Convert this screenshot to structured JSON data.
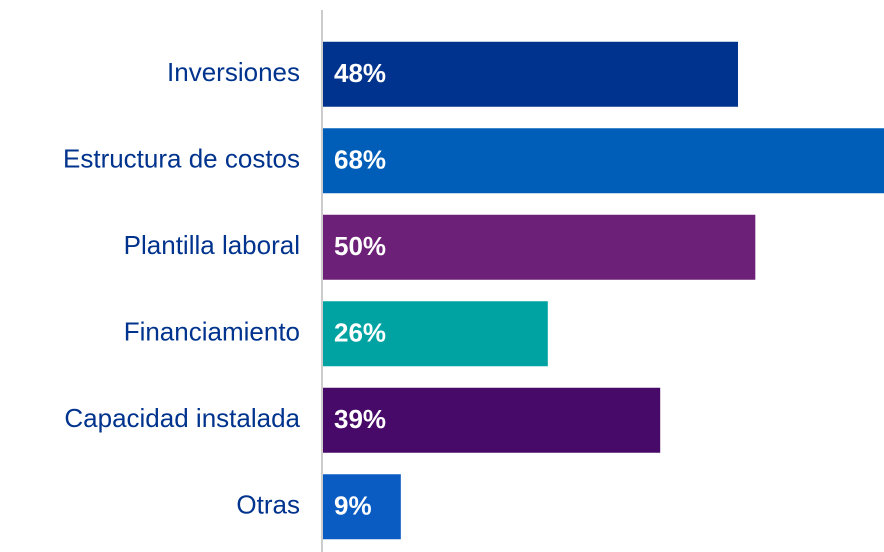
{
  "chart_data": {
    "type": "bar",
    "orientation": "horizontal",
    "categories": [
      "Inversiones",
      "Estructura de costos",
      "Plantilla laboral",
      "Financiamiento",
      "Capacidad instalada",
      "Otras"
    ],
    "values": [
      48,
      68,
      50,
      26,
      39,
      9
    ],
    "value_labels": [
      "48%",
      "68%",
      "50%",
      "26%",
      "39%",
      "9%"
    ],
    "colors": [
      "#00338d",
      "#005eb8",
      "#6d2077",
      "#00a3a1",
      "#470a68",
      "#0a5cc2"
    ],
    "xlim": [
      0,
      65
    ]
  }
}
